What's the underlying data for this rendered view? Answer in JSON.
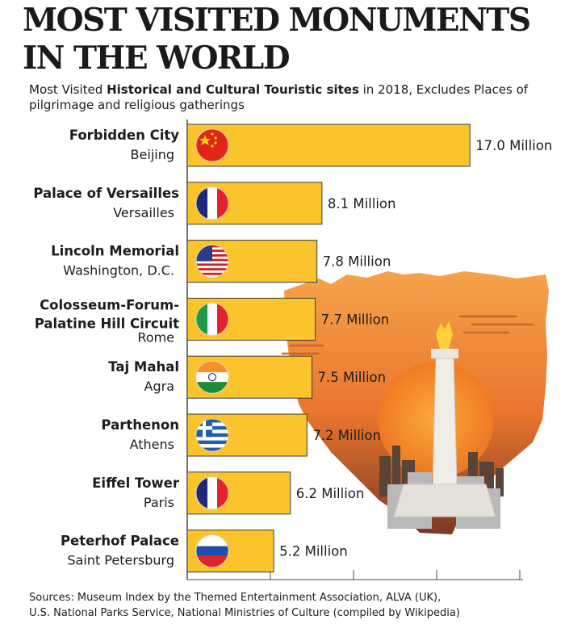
{
  "title_line1": "MOST VISITED MONUMENTS",
  "title_line2": "IN THE WORLD",
  "subtitle_prefix": "Most Visited ",
  "subtitle_bold": "Historical and Cultural Touristic sites",
  "subtitle_suffix": " in 2018, Excludes Places of pilgrimage and religious gatherings",
  "sources_line1": "Sources: Museum Index by the Themed Entertainment Association, ALVA (UK),",
  "sources_line2": "U.S. National Parks Service, National Ministries of Culture (compiled by Wikipedia)",
  "colors": {
    "bar": "#fcc42c",
    "bar_stroke": "#3a3a3a",
    "grid": "#444444",
    "text": "#1c1c1c"
  },
  "chart_data": {
    "type": "bar",
    "orientation": "horizontal",
    "unit": "Million",
    "xlim": [
      0,
      17.5
    ],
    "grid": true,
    "categories": [
      {
        "name_lines": [
          "Forbidden City"
        ],
        "city": "Beijing",
        "flag": "china-flag-icon"
      },
      {
        "name_lines": [
          "Palace of Versailles"
        ],
        "city": "Versailles",
        "flag": "france-flag-icon"
      },
      {
        "name_lines": [
          "Lincoln Memorial"
        ],
        "city": "Washington, D.C.",
        "flag": "usa-flag-icon"
      },
      {
        "name_lines": [
          "Colosseum-Forum-",
          "Palatine Hill Circuit"
        ],
        "city": "Rome",
        "flag": "italy-flag-icon"
      },
      {
        "name_lines": [
          "Taj Mahal"
        ],
        "city": "Agra",
        "flag": "india-flag-icon"
      },
      {
        "name_lines": [
          "Parthenon"
        ],
        "city": "Athens",
        "flag": "greece-flag-icon"
      },
      {
        "name_lines": [
          "Eiffel Tower"
        ],
        "city": "Paris",
        "flag": "france-flag-icon"
      },
      {
        "name_lines": [
          "Peterhof Palace"
        ],
        "city": "Saint Petersburg",
        "flag": "russia-flag-icon"
      }
    ],
    "values": [
      17.0,
      8.1,
      7.8,
      7.7,
      7.5,
      7.2,
      6.2,
      5.2
    ],
    "value_labels": [
      "17.0 Million",
      "8.1 Million",
      "7.8 Million",
      "7.7 Million",
      "7.5 Million",
      "7.2 Million",
      "6.2 Million",
      "5.2 Million"
    ]
  }
}
